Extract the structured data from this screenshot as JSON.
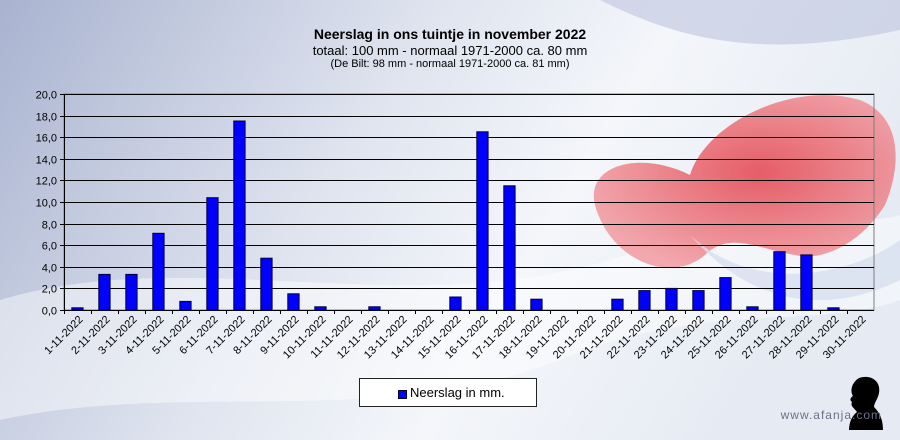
{
  "title": "Neerslag in ons tuintje in november 2022",
  "subtitle": "totaal: 100 mm - normaal 1971-2000 ca. 80 mm",
  "subtitle2": "(De Bilt: 98 mm - normaal 1971-2000 ca. 81 mm)",
  "brand": "www.afanja.com",
  "colors": {
    "bar": "#0000ff",
    "bar_stroke": "#000040",
    "grid": "#000000",
    "background_left": "#aab4d2",
    "heart": "#e84a52"
  },
  "chart_data": {
    "type": "bar",
    "categories": [
      "1-11-2022",
      "2-11-2022",
      "3-11-2022",
      "4-11-2022",
      "5-11-2022",
      "6-11-2022",
      "7-11-2022",
      "8-11-2022",
      "9-11-2022",
      "10-11-2022",
      "11-11-2022",
      "12-11-2022",
      "13-11-2022",
      "14-11-2022",
      "15-11-2022",
      "16-11-2022",
      "17-11-2022",
      "18-11-2022",
      "19-11-2022",
      "20-11-2022",
      "21-11-2022",
      "22-11-2022",
      "23-11-2022",
      "24-11-2022",
      "25-11-2022",
      "26-11-2022",
      "27-11-2022",
      "28-11-2022",
      "29-11-2022",
      "30-11-2022"
    ],
    "series": [
      {
        "name": "Neerslag in mm.",
        "values": [
          0.2,
          3.3,
          3.3,
          7.1,
          0.8,
          10.4,
          17.5,
          4.8,
          1.5,
          0.3,
          0,
          0.3,
          0,
          0,
          1.2,
          16.5,
          11.5,
          1.0,
          0,
          0,
          1.0,
          1.8,
          2.0,
          1.8,
          3.0,
          0.3,
          5.4,
          5.1,
          0.2,
          0
        ]
      }
    ],
    "ylim": [
      0,
      20
    ],
    "yticks": [
      "0,0",
      "2,0",
      "4,0",
      "6,0",
      "8,0",
      "10,0",
      "12,0",
      "14,0",
      "16,0",
      "18,0",
      "20,0"
    ],
    "grid": true,
    "legend": "bottom-center"
  }
}
